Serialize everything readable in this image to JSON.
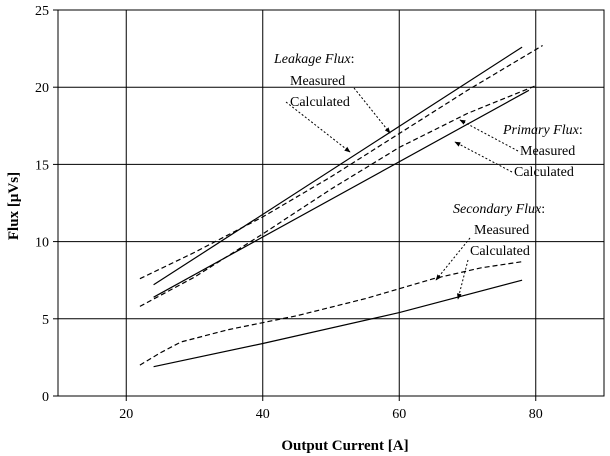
{
  "chart_data": {
    "type": "line",
    "title": "",
    "xlabel": "Output Current [A]",
    "ylabel": "Flux [µVs]",
    "xlim": [
      10,
      90
    ],
    "ylim": [
      0,
      25
    ],
    "xticks": [
      20,
      40,
      60,
      80
    ],
    "yticks": [
      0,
      5,
      10,
      15,
      20,
      25
    ],
    "grid": true,
    "legend": "none",
    "series": [
      {
        "group": "Leakage Flux",
        "name": "Measured",
        "style": "dashed",
        "x": [
          22,
          30,
          40,
          50,
          60,
          70,
          81
        ],
        "y": [
          7.6,
          9.3,
          11.6,
          14.2,
          17.0,
          19.8,
          22.7
        ]
      },
      {
        "group": "Leakage Flux",
        "name": "Calculated",
        "style": "solid",
        "x": [
          24,
          78
        ],
        "y": [
          7.2,
          22.6
        ]
      },
      {
        "group": "Primary Flux",
        "name": "Measured",
        "style": "dashed",
        "x": [
          22,
          30,
          40,
          50,
          60,
          70,
          80
        ],
        "y": [
          5.8,
          7.7,
          10.5,
          13.4,
          16.1,
          18.3,
          20.1
        ]
      },
      {
        "group": "Primary Flux",
        "name": "Calculated",
        "style": "solid",
        "x": [
          24,
          79
        ],
        "y": [
          6.4,
          19.8
        ]
      },
      {
        "group": "Secondary Flux",
        "name": "Measured",
        "style": "dashed",
        "x": [
          22,
          25,
          28,
          35,
          45,
          55,
          65,
          72,
          78
        ],
        "y": [
          2.0,
          2.8,
          3.5,
          4.3,
          5.2,
          6.3,
          7.6,
          8.3,
          8.7
        ]
      },
      {
        "group": "Secondary Flux",
        "name": "Calculated",
        "style": "solid",
        "x": [
          24,
          40,
          60,
          78
        ],
        "y": [
          1.9,
          3.4,
          5.4,
          7.5
        ]
      }
    ],
    "annotations": [
      {
        "group": "Leakage Flux",
        "heading": "Leakage Flux",
        "suffix": ":",
        "measured": "Measured",
        "calculated": "Calculated"
      },
      {
        "group": "Primary Flux",
        "heading": "Primary Flux",
        "suffix": ":",
        "measured": "Measured",
        "calculated": "Calculated"
      },
      {
        "group": "Secondary Flux",
        "heading": "Secondary Flux",
        "suffix": ":",
        "measured": "Measured",
        "calculated": "Calculated"
      }
    ]
  }
}
